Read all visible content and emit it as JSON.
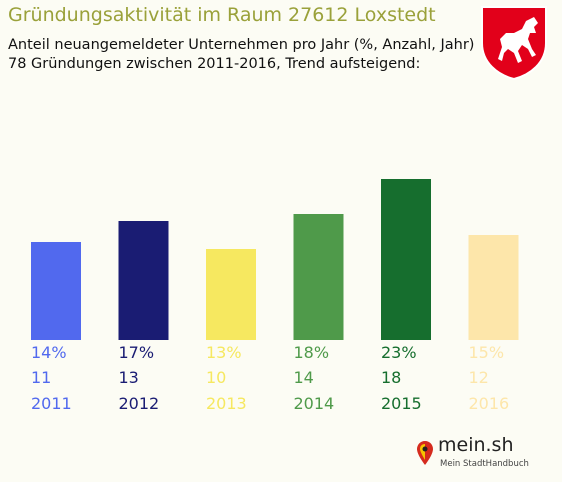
{
  "header": {
    "title": "Gründungsaktivität im Raum 27612 Loxstedt",
    "subtitle_line1": "Anteil neuangemeldeter Unternehmen pro Jahr (%, Anzahl, Jahr)",
    "subtitle_line2": "78 Gründungen zwischen 2011-2016, Trend aufsteigend:"
  },
  "crest": {
    "icon": "lower-saxony-horse-crest-icon",
    "background": "#e2001a",
    "horse": "#ffffff"
  },
  "chart_data": {
    "type": "bar",
    "categories": [
      "2011",
      "2012",
      "2013",
      "2014",
      "2015",
      "2016"
    ],
    "values": [
      14,
      17,
      13,
      18,
      23,
      15
    ],
    "counts": [
      11,
      13,
      10,
      14,
      18,
      12
    ],
    "percent_labels": [
      "14%",
      "17%",
      "13%",
      "18%",
      "23%",
      "15%"
    ],
    "colors": [
      "#5169ee",
      "#1a1c73",
      "#f6e860",
      "#4f9a4a",
      "#166e2e",
      "#fde6aa"
    ],
    "title": "",
    "xlabel": "",
    "ylabel": "",
    "ylim": [
      0,
      23
    ],
    "grid": false,
    "legend": "none"
  },
  "footer": {
    "brand": "mein.sh",
    "tagline": "Mein StadtHandbuch",
    "brand_colors": [
      "#d52b1e",
      "#f6c500",
      "#222222"
    ]
  }
}
